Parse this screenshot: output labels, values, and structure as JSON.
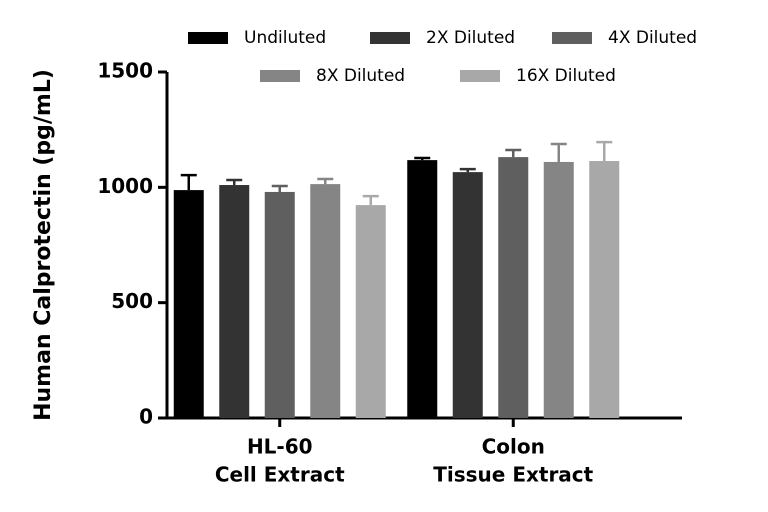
{
  "chart_data": {
    "type": "bar",
    "y_label": "Human Calprotectin (pg/mL)",
    "categories": [
      [
        "HL-60",
        "Cell Extract"
      ],
      [
        "Colon",
        "Tissue Extract"
      ]
    ],
    "series": [
      {
        "name": "Undiluted",
        "color": "#000000",
        "values": [
          988,
          1118
        ],
        "errors": [
          65,
          9
        ]
      },
      {
        "name": "2X Diluted",
        "color": "#333333",
        "values": [
          1010,
          1066
        ],
        "errors": [
          22,
          13
        ]
      },
      {
        "name": "4X Diluted",
        "color": "#5f5f5f",
        "values": [
          980,
          1131
        ],
        "errors": [
          26,
          31
        ]
      },
      {
        "name": "8X Diluted",
        "color": "#858585",
        "values": [
          1014,
          1110
        ],
        "errors": [
          22,
          78
        ]
      },
      {
        "name": "16X Diluted",
        "color": "#a8a8a8",
        "values": [
          923,
          1114
        ],
        "errors": [
          39,
          82
        ]
      }
    ],
    "ylim": [
      0,
      1500
    ],
    "yticks": [
      0,
      500,
      1000,
      1500
    ]
  }
}
